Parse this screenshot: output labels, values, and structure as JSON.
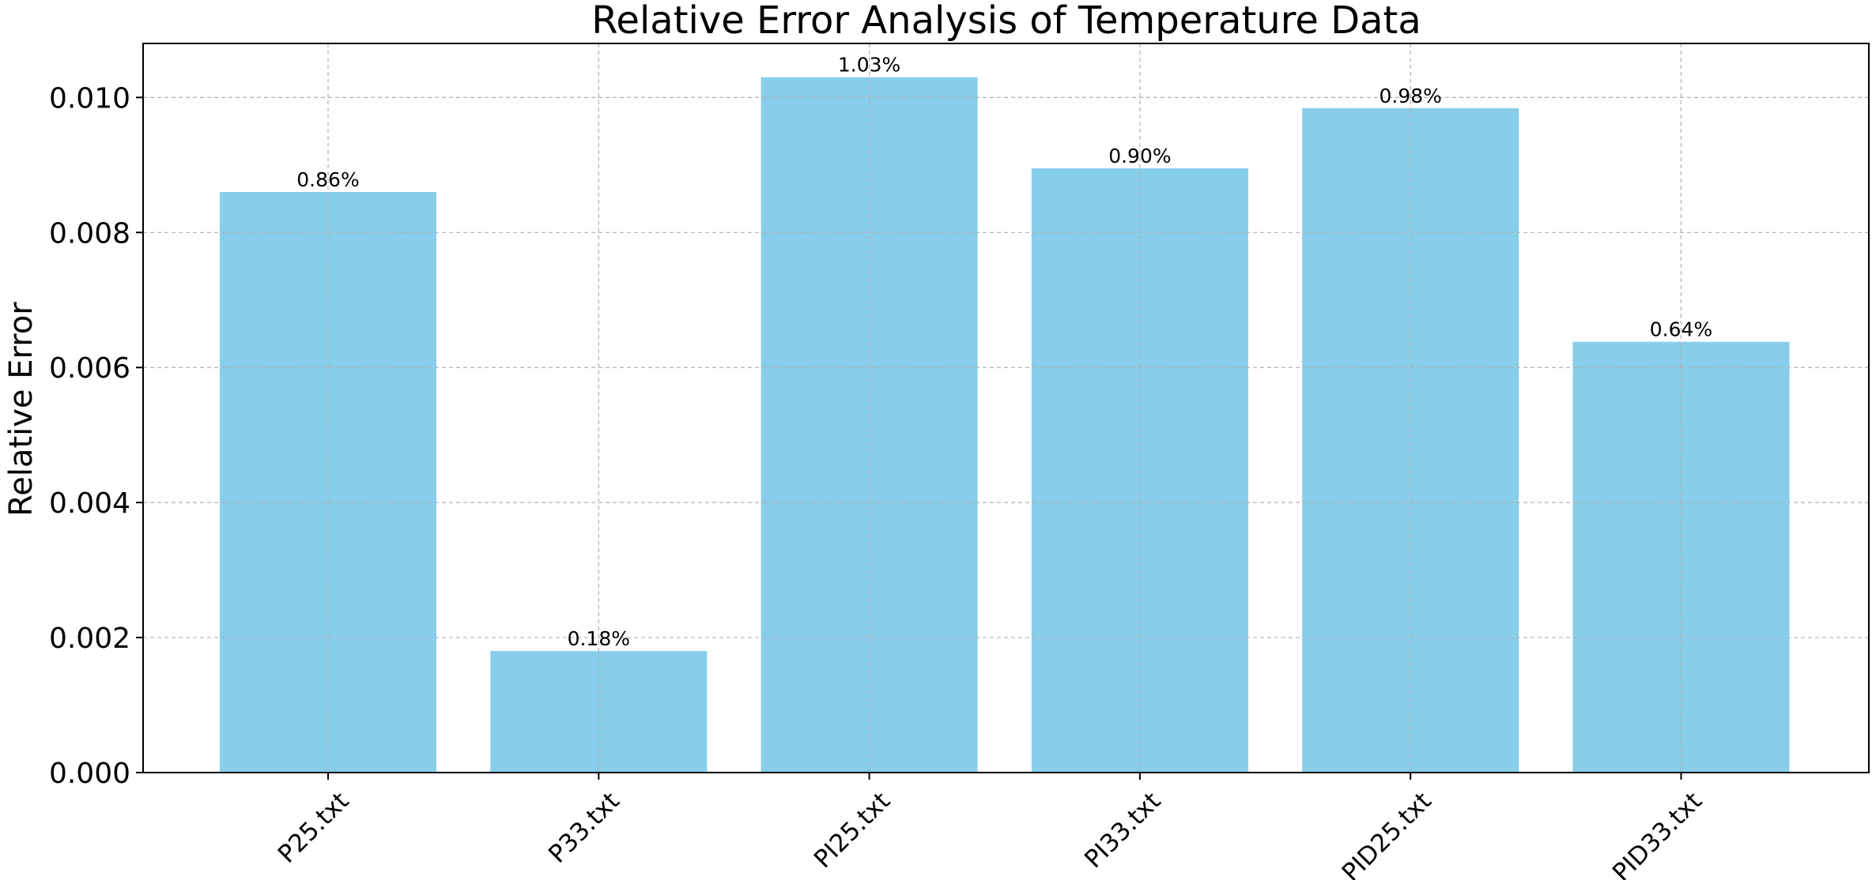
{
  "chart_data": {
    "type": "bar",
    "title": "Relative Error Analysis of Temperature Data",
    "xlabel": "",
    "ylabel": "Relative Error",
    "categories": [
      "P25.txt",
      "P33.txt",
      "PI25.txt",
      "PI33.txt",
      "PID25.txt",
      "PID33.txt"
    ],
    "values": [
      0.0086,
      0.0018,
      0.0103,
      0.00895,
      0.00984,
      0.00638
    ],
    "data_labels": [
      "0.86%",
      "0.18%",
      "1.03%",
      "0.90%",
      "0.98%",
      "0.64%"
    ],
    "ylim": [
      0,
      0.0108
    ],
    "yticks": [
      "0.000",
      "0.002",
      "0.004",
      "0.006",
      "0.008",
      "0.010"
    ],
    "ytick_values": [
      0,
      0.002,
      0.004,
      0.006,
      0.008,
      0.01
    ],
    "grid": true,
    "bar_color": "#87CEEB"
  }
}
